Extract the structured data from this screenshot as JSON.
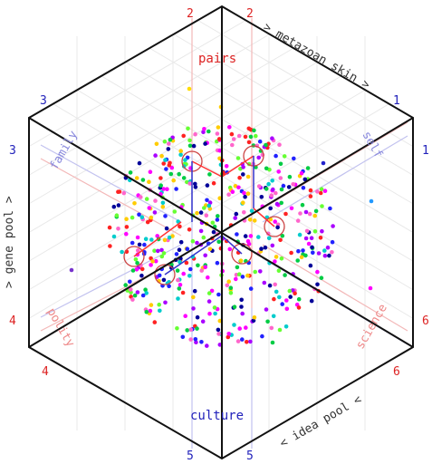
{
  "colors": {
    "red": "#dd2222",
    "blue": "#2222bb",
    "pink_line": "#f3b8b8",
    "blue_line": "#c2c2ef",
    "frame": "#111111",
    "grid": "#e8e8e8",
    "pink_label": "#ee8888",
    "blue_label": "#8888dd"
  },
  "axis_labels": {
    "top_right": "> metazoan skin >",
    "left": "> gene pool >",
    "bottom_right": "< idea pool <"
  },
  "center_labels": {
    "top": "pairs",
    "bottom": "culture"
  },
  "region_labels": {
    "family": "family",
    "self": "self",
    "polity": "polity",
    "science": "science"
  },
  "vertex_numbers": {
    "top_left_red": "2",
    "top_right_red": "2",
    "upper_right_blue": "1",
    "right_blue": "1",
    "right_red": "6",
    "lower_right_red": "6",
    "bottom_right_blue": "5",
    "bottom_left_blue": "5",
    "lower_left_red": "4",
    "left_red": "4",
    "left_blue": "3",
    "upper_left_blue": "3"
  },
  "icons": {
    "scatter": "multicolor-dot-scatter",
    "circles": "selection-circle"
  }
}
